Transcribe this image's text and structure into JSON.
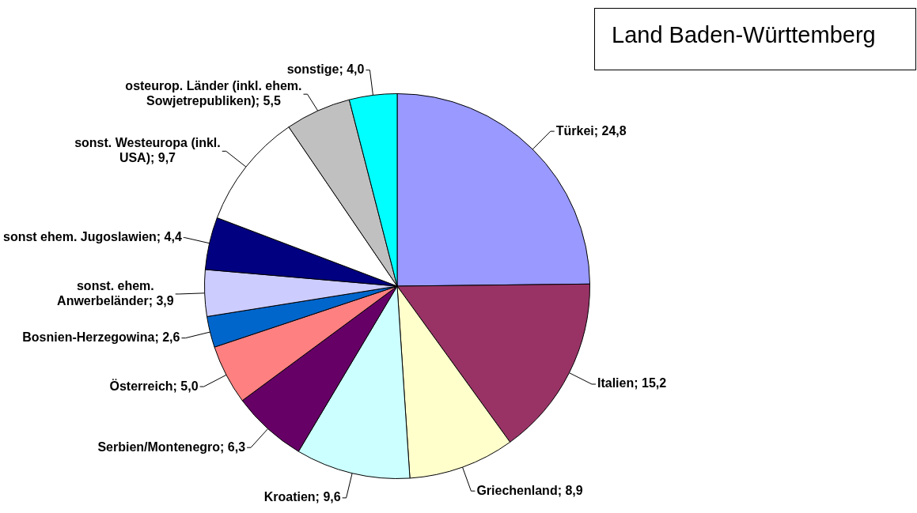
{
  "chart_data": {
    "type": "pie",
    "title": "Land Baden-Württemberg",
    "categories": [
      "Türkei",
      "Italien",
      "Griechenland",
      "Kroatien",
      "Serbien/Montenegro",
      "Österreich",
      "Bosnien-Herzegowina",
      "sonst. ehem. Anwerbeländer",
      "sonst ehem. Jugoslawien",
      "sonst. Westeuropa (inkl. USA)",
      "osteurop. Länder (inkl. ehem. Sowjetrepubliken)",
      "sonstige"
    ],
    "values": [
      24.8,
      15.2,
      8.9,
      9.6,
      6.3,
      5.0,
      2.6,
      3.9,
      4.4,
      9.7,
      5.5,
      4.0
    ],
    "colors": [
      "#9999ff",
      "#993366",
      "#ffffcc",
      "#ccffff",
      "#660066",
      "#ff8080",
      "#0066cc",
      "#ccccff",
      "#000080",
      "#ffffff",
      "#c0c0c0",
      "#00ffff"
    ],
    "value_labels": [
      "24,8",
      "15,2",
      "8,9",
      "9,6",
      "6,3",
      "5,0",
      "2,6",
      "3,9",
      "4,4",
      "9,7",
      "5,5",
      "4,0"
    ]
  }
}
